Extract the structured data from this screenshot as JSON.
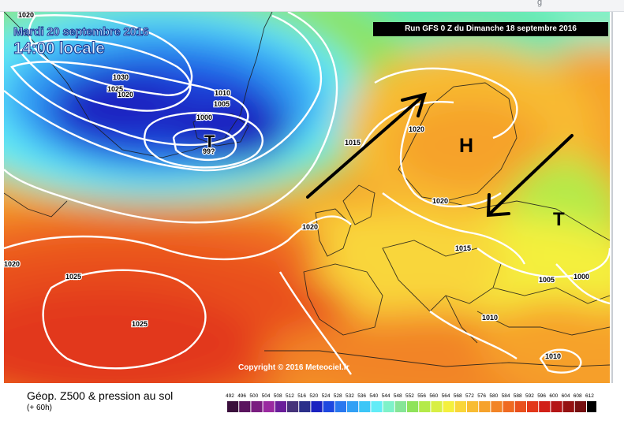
{
  "browser": {
    "fragment": "g"
  },
  "map": {
    "date_label": "Mardi 20 septembre 2016",
    "time_label": "14:00 locale",
    "run_label": "Run GFS 0 Z du Dimanche 18 septembre 2016",
    "copyright": "Copyright © 2016 Meteociel.fr",
    "isobar_labels": [
      "1020",
      "1030",
      "1025",
      "1020",
      "1010",
      "1005",
      "1000",
      "99?",
      "1015",
      "1020",
      "1020",
      "1020",
      "1025",
      "1025",
      "1015",
      "1005",
      "1000",
      "1010",
      "1010",
      "1020"
    ],
    "pressure_systems": [
      "T",
      "H",
      "T"
    ],
    "colors": {
      "ocean_blue": "#1f5fe0",
      "warm_red": "#e83a1e",
      "isobar": "#ffffff",
      "arrow": "#000000"
    }
  },
  "legend": {
    "title": "Géop. Z500 & pression au sol",
    "lead_time": "(+ 60h)",
    "scale_values": [
      "492",
      "496",
      "500",
      "504",
      "508",
      "512",
      "516",
      "520",
      "524",
      "528",
      "532",
      "536",
      "540",
      "544",
      "548",
      "552",
      "556",
      "560",
      "564",
      "568",
      "572",
      "576",
      "580",
      "584",
      "588",
      "592",
      "596",
      "600",
      "604",
      "608",
      "612"
    ],
    "scale_colors": [
      "#3a0f3c",
      "#5a145e",
      "#7a1e80",
      "#9a2aa0",
      "#6a1e9a",
      "#46337a",
      "#2b2f8a",
      "#1a22c0",
      "#1e48e0",
      "#2a78ef",
      "#32a0f5",
      "#3cc6f7",
      "#62ecf7",
      "#7ef2c9",
      "#86e597",
      "#8fe35a",
      "#b4ea4a",
      "#d8ef45",
      "#f4f03d",
      "#f9d63a",
      "#f8bc32",
      "#f6a22c",
      "#f28426",
      "#ef6a22",
      "#e9501e",
      "#e2371a",
      "#d12018",
      "#b41516",
      "#951212",
      "#761011",
      "#000000"
    ]
  }
}
